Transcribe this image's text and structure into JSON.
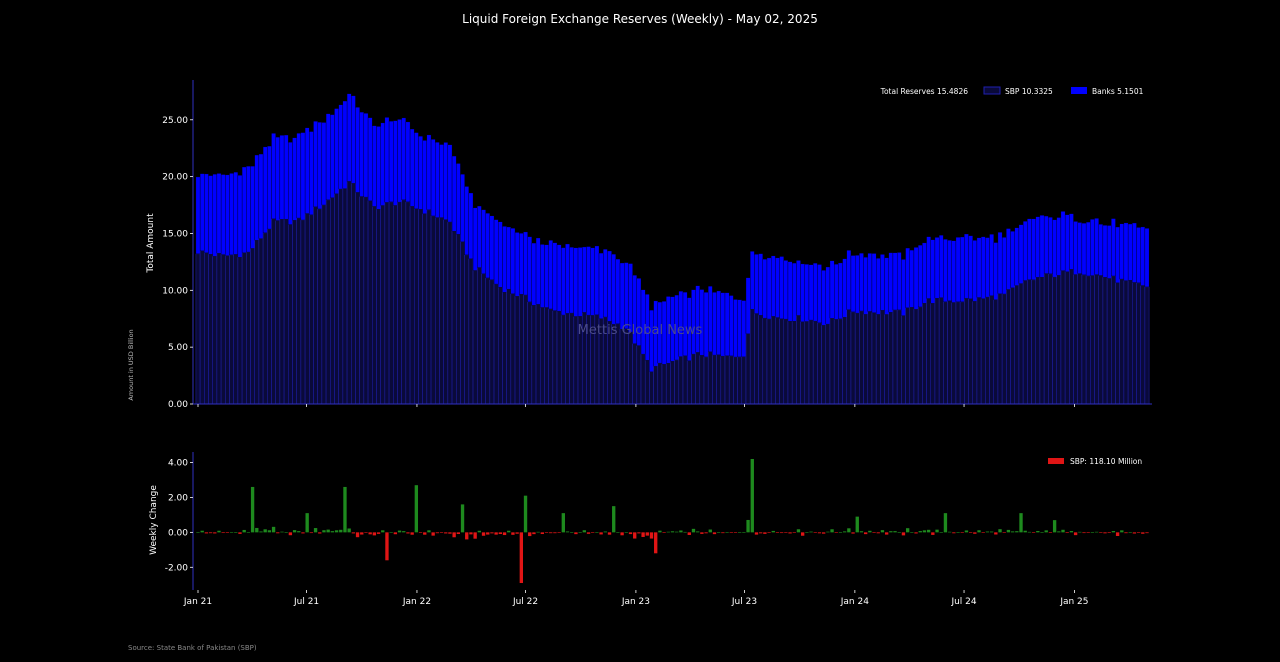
{
  "title": "Liquid Foreign Exchange Reserves (Weekly) - May 02, 2025",
  "watermark": "Mettis Global News",
  "source": "Source: State Bank of Pakistan (SBP)",
  "outer_ylabel": "Amount in USD Billion",
  "colors": {
    "background": "#000000",
    "sbp_bar": "#0a0a3a",
    "sbp_edge": "#2020b0",
    "banks_bar": "#0000ff",
    "axis": "#3030c0",
    "positive_change": "#1e8a1e",
    "negative_change": "#e01515",
    "text": "#ffffff",
    "watermark": "#4a4a8a"
  },
  "x_tick_labels": [
    "Jan 21",
    "Jul 21",
    "Jan 22",
    "Jul 22",
    "Jan 23",
    "Jul 23",
    "Jan 24",
    "Jul 24",
    "Jan 25"
  ],
  "chart_data": [
    {
      "type": "bar",
      "stacked": true,
      "ylabel": "Total Amount",
      "ylim": [
        0,
        28.5
      ],
      "yticks": [
        0,
        5,
        10,
        15,
        20,
        25
      ],
      "ytick_labels": [
        "0.00",
        "5.00",
        "10.00",
        "15.00",
        "20.00",
        "25.00"
      ],
      "legend_position": "top-right",
      "legend": {
        "total_label": "Total Reserves 15.4826",
        "sbp_label": "SBP 10.3325",
        "banks_label": "Banks 5.1501"
      },
      "x_start": "2021-01-01",
      "x_end": "2025-05-02",
      "keypoints": {
        "dates": [
          "2021-01-01",
          "2021-02-12",
          "2021-03-26",
          "2021-05-07",
          "2021-06-18",
          "2021-07-30",
          "2021-09-10",
          "2021-10-22",
          "2021-12-03",
          "2022-01-14",
          "2022-02-25",
          "2022-04-08",
          "2022-05-20",
          "2022-07-01",
          "2022-08-12",
          "2022-09-23",
          "2022-11-04",
          "2022-12-16",
          "2023-01-27",
          "2023-03-10",
          "2023-04-21",
          "2023-06-02",
          "2023-06-30",
          "2023-07-14",
          "2023-08-25",
          "2023-10-06",
          "2023-11-17",
          "2023-12-29",
          "2024-02-09",
          "2024-03-22",
          "2024-05-03",
          "2024-06-14",
          "2024-07-26",
          "2024-09-06",
          "2024-10-18",
          "2024-11-29",
          "2025-01-10",
          "2025-02-21",
          "2025-04-04",
          "2025-05-02"
        ],
        "sbp": [
          13.4,
          13.0,
          13.3,
          16.0,
          16.1,
          17.6,
          19.5,
          17.3,
          17.8,
          17.0,
          16.0,
          12.0,
          10.3,
          9.3,
          8.2,
          7.9,
          7.6,
          6.7,
          3.1,
          3.8,
          4.4,
          4.1,
          4.4,
          8.1,
          7.6,
          7.5,
          7.1,
          8.2,
          8.1,
          8.0,
          9.1,
          9.1,
          9.2,
          9.6,
          10.9,
          11.4,
          11.7,
          11.2,
          10.6,
          10.3
        ],
        "banks": [
          7.0,
          7.0,
          7.4,
          7.3,
          7.5,
          7.5,
          7.6,
          7.3,
          7.2,
          6.5,
          6.6,
          5.5,
          5.6,
          5.5,
          5.8,
          5.9,
          6.0,
          5.9,
          5.5,
          5.8,
          5.7,
          5.5,
          5.0,
          5.3,
          5.4,
          5.0,
          5.0,
          5.0,
          5.0,
          5.1,
          5.4,
          5.5,
          5.4,
          5.2,
          5.2,
          5.2,
          4.7,
          4.7,
          5.0,
          5.15
        ]
      },
      "series": [
        {
          "name": "SBP 10.3325"
        },
        {
          "name": "Banks 5.1501"
        }
      ]
    },
    {
      "type": "bar",
      "ylabel": "Weekly Change",
      "ylim": [
        -3.3,
        4.6
      ],
      "yticks": [
        -2,
        0,
        2,
        4
      ],
      "ytick_labels": [
        "-2.00",
        "0.00",
        "2.00",
        "4.00"
      ],
      "legend_position": "top-right",
      "legend": {
        "sbp_label": "SBP: 118.10 Million"
      },
      "spikes": [
        {
          "date": "2021-04-02",
          "value": 2.6
        },
        {
          "date": "2021-07-02",
          "value": 1.1
        },
        {
          "date": "2021-09-03",
          "value": 2.6
        },
        {
          "date": "2021-11-12",
          "value": -1.6
        },
        {
          "date": "2021-12-31",
          "value": 2.7
        },
        {
          "date": "2022-03-18",
          "value": 1.6
        },
        {
          "date": "2022-06-24",
          "value": -2.9
        },
        {
          "date": "2022-07-01",
          "value": 2.1
        },
        {
          "date": "2022-09-02",
          "value": 1.1
        },
        {
          "date": "2022-11-25",
          "value": 1.5
        },
        {
          "date": "2023-02-03",
          "value": -1.2
        },
        {
          "date": "2023-07-14",
          "value": 4.2
        },
        {
          "date": "2024-01-05",
          "value": 0.9
        },
        {
          "date": "2024-05-31",
          "value": 1.1
        },
        {
          "date": "2024-10-04",
          "value": 1.1
        },
        {
          "date": "2024-11-29",
          "value": 0.7
        }
      ]
    }
  ]
}
